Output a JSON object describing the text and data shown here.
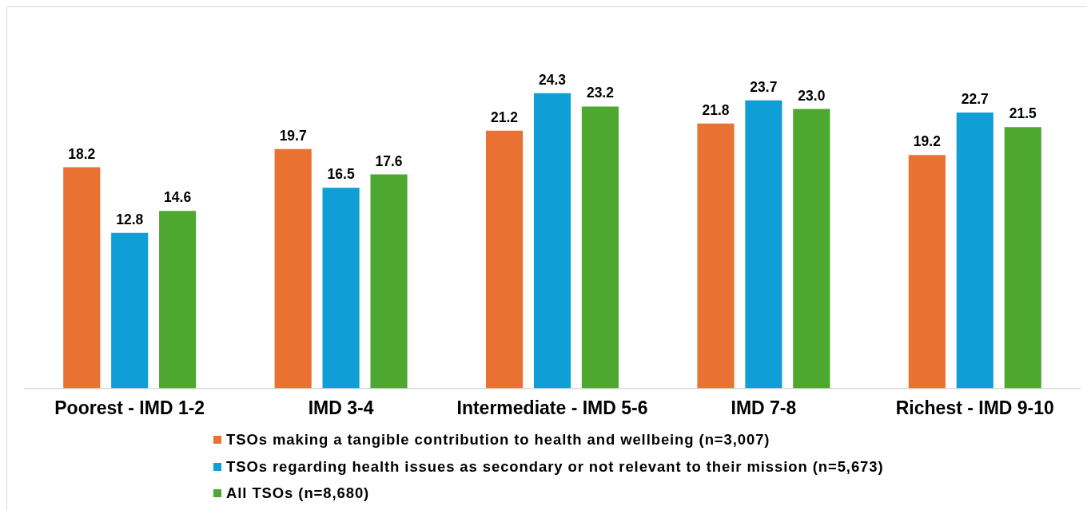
{
  "chart_data": {
    "type": "bar",
    "categories": [
      "Poorest - IMD 1-2",
      "IMD 3-4",
      "Intermediate - IMD 5-6",
      "IMD 7-8",
      "Richest - IMD 9-10"
    ],
    "series": [
      {
        "name": "TSOs making a tangible contribution to health and wellbeing (n=3,007)",
        "color": "#e97132",
        "values": [
          18.2,
          19.7,
          21.2,
          21.8,
          19.2
        ],
        "value_labels": [
          "18.2",
          "19.7",
          "21.2",
          "21.8",
          "19.2"
        ]
      },
      {
        "name": "TSOs regarding health issues as secondary or not relevant to their mission (n=5,673)",
        "color": "#0f9ed5",
        "values": [
          12.8,
          16.5,
          24.3,
          23.7,
          22.7
        ],
        "value_labels": [
          "12.8",
          "16.5",
          "24.3",
          "23.7",
          "22.7"
        ]
      },
      {
        "name": "All TSOs (n=8,680)",
        "color": "#4ea72e",
        "values": [
          14.6,
          17.6,
          23.2,
          23.0,
          21.5
        ],
        "value_labels": [
          "14.6",
          "17.6",
          "23.2",
          "23.0",
          "21.5"
        ]
      }
    ],
    "tick_labels": "x",
    "legend": "bottom"
  }
}
